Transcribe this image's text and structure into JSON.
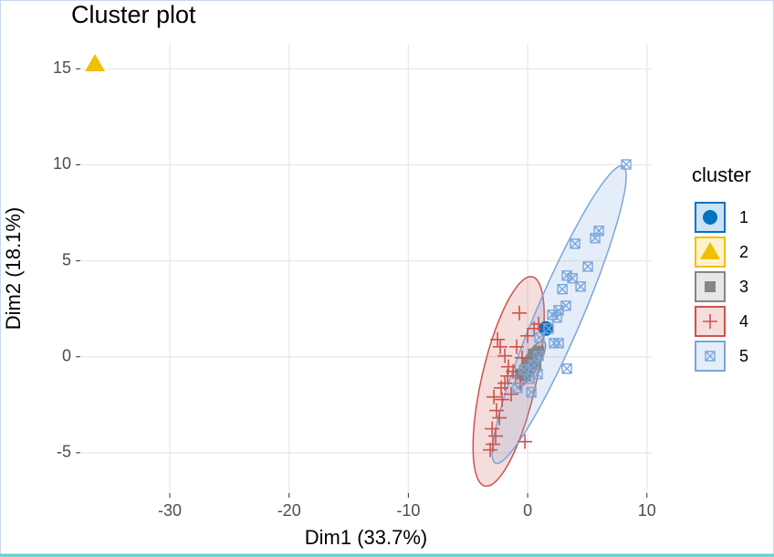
{
  "chart_data": {
    "type": "scatter",
    "title": "Cluster plot",
    "x_label": "Dim1 (33.7%)",
    "y_label": "Dim2 (18.1%)",
    "legend_title": "cluster",
    "legend": "right",
    "grid": true,
    "ellipses": true,
    "xlim": [
      -37.5,
      10.4
    ],
    "ylim": [
      -7.1,
      16.3
    ],
    "xticks": [
      -30,
      -20,
      -10,
      0,
      10
    ],
    "yticks": [
      15,
      10,
      5,
      0,
      -5
    ],
    "series": [
      {
        "name": "1",
        "color": "#0073C2",
        "shape": "circle",
        "x": [
          1.53
        ],
        "y": [
          1.47
        ]
      },
      {
        "name": "2",
        "color": "#EFC000",
        "shape": "triangle",
        "x": [
          -36.27
        ],
        "y": [
          15.25
        ]
      },
      {
        "name": "3",
        "color": "#868686",
        "shape": "square",
        "x": [
          0.38,
          0.69,
          0.15,
          -0.15,
          0.92,
          -0.61,
          0.46,
          0
        ],
        "y": [
          -0.19,
          -0.43,
          -0.67,
          -1.0,
          0.29,
          -0.9,
          0.14,
          -0.33
        ]
      },
      {
        "name": "4",
        "color": "#CD534C",
        "shape": "plus",
        "x": [
          -0.69,
          -2.52,
          -2.3,
          -1.91,
          -1.61,
          -1.68,
          -1.91,
          -2.22,
          -2.83,
          -2.14,
          -2.6,
          -2.37,
          -2.98,
          -2.68,
          -2.91,
          -3.14,
          -0.23,
          -0.92,
          -0.46,
          -1.22,
          -0.61,
          -1.38,
          0.54,
          0,
          0.92
        ],
        "y": [
          2.28,
          0.9,
          0.52,
          0.05,
          -0.52,
          -1.0,
          -1.38,
          -1.62,
          -2.09,
          -2.23,
          -2.8,
          -3.18,
          -3.75,
          -4.13,
          -4.56,
          -4.85,
          -4.42,
          0.52,
          -0.05,
          -0.76,
          -1.38,
          -1.95,
          1.47,
          1.09,
          1.71
        ]
      },
      {
        "name": "5",
        "color": "#7AA6DC",
        "shape": "boxcross",
        "x": [
          8.26,
          5.97,
          5.66,
          3.98,
          5.05,
          3.29,
          3.75,
          4.44,
          2.91,
          3.21,
          2.6,
          2.07,
          2.45,
          1.76,
          0.99,
          2.22,
          2.6,
          3.29,
          0.92,
          0.54,
          0.84,
          0.15,
          -0.31,
          -0.84,
          0.31
        ],
        "y": [
          10.02,
          6.56,
          6.18,
          5.89,
          4.7,
          4.23,
          4.09,
          3.66,
          3.52,
          2.66,
          2.42,
          2.19,
          2.04,
          1.47,
          1.0,
          0.71,
          0.71,
          -0.62,
          0.05,
          -0.43,
          -0.9,
          -1.14,
          -0.67,
          -1.62,
          -1.85
        ]
      }
    ]
  }
}
